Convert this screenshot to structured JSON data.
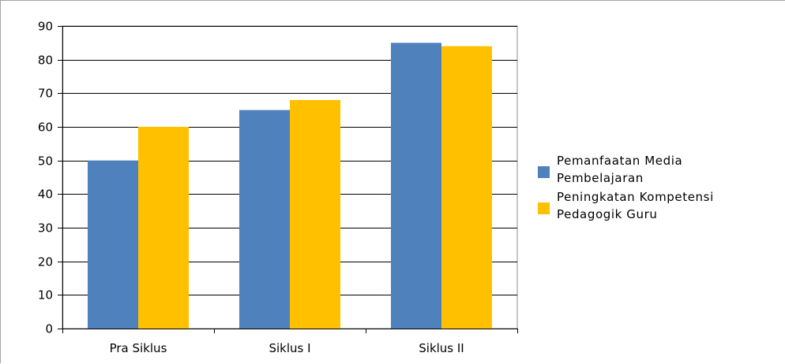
{
  "chart_data": {
    "type": "bar",
    "categories": [
      "Pra Siklus",
      "Siklus I",
      "Siklus II"
    ],
    "series": [
      {
        "name": "Pemanfaatan Media Pembelajaran",
        "name_lines": [
          "Pemanfaatan Media",
          "Pembelajaran"
        ],
        "color": "#4f81bd",
        "values": [
          50,
          65,
          85
        ]
      },
      {
        "name": "Peningkatan Kompetensi Pedagogik Guru",
        "name_lines": [
          "Peningkatan Kompetensi",
          "Pedagogik Guru"
        ],
        "color": "#ffc000",
        "values": [
          60,
          68,
          84
        ]
      }
    ],
    "title": "",
    "xlabel": "",
    "ylabel": "",
    "ylim": [
      0,
      90
    ],
    "yticks": [
      0,
      10,
      20,
      30,
      40,
      50,
      60,
      70,
      80,
      90
    ],
    "grid": true,
    "legend_position": "right"
  }
}
